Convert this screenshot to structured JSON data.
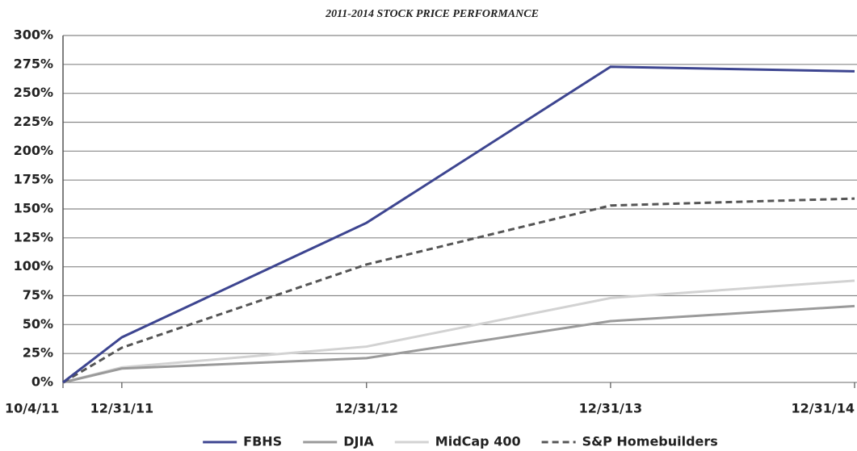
{
  "chart_data": {
    "type": "line",
    "title": "2011-2014 STOCK PRICE PERFORMANCE",
    "x": [
      "10/4/11",
      "12/31/11",
      "12/31/12",
      "12/31/13",
      "12/31/14"
    ],
    "series": [
      {
        "name": "FBHS",
        "color": "#3d4590",
        "style": "solid",
        "values": [
          0,
          39,
          138,
          273,
          269
        ]
      },
      {
        "name": "DJIA",
        "color": "#9a9a9a",
        "style": "solid",
        "values": [
          0,
          12,
          21,
          53,
          66
        ]
      },
      {
        "name": "MidCap 400",
        "color": "#d2d2d2",
        "style": "solid",
        "values": [
          0,
          13,
          31,
          73,
          88
        ]
      },
      {
        "name": "S&P Homebuilders",
        "color": "#555555",
        "style": "dashed",
        "values": [
          0,
          30,
          102,
          153,
          159
        ]
      }
    ],
    "ylim": [
      0,
      300
    ],
    "yticks": [
      {
        "value": 0,
        "label": "0%"
      },
      {
        "value": 25,
        "label": "25%"
      },
      {
        "value": 50,
        "label": "50%"
      },
      {
        "value": 75,
        "label": "75%"
      },
      {
        "value": 100,
        "label": "100%"
      },
      {
        "value": 125,
        "label": "125%"
      },
      {
        "value": 150,
        "label": "150%"
      },
      {
        "value": 175,
        "label": "175%"
      },
      {
        "value": 200,
        "label": "200%"
      },
      {
        "value": 225,
        "label": "225%"
      },
      {
        "value": 250,
        "label": "250%"
      },
      {
        "value": 275,
        "label": "275%"
      },
      {
        "value": 300,
        "label": "300%"
      }
    ],
    "grid": true,
    "legend": "bottom"
  }
}
